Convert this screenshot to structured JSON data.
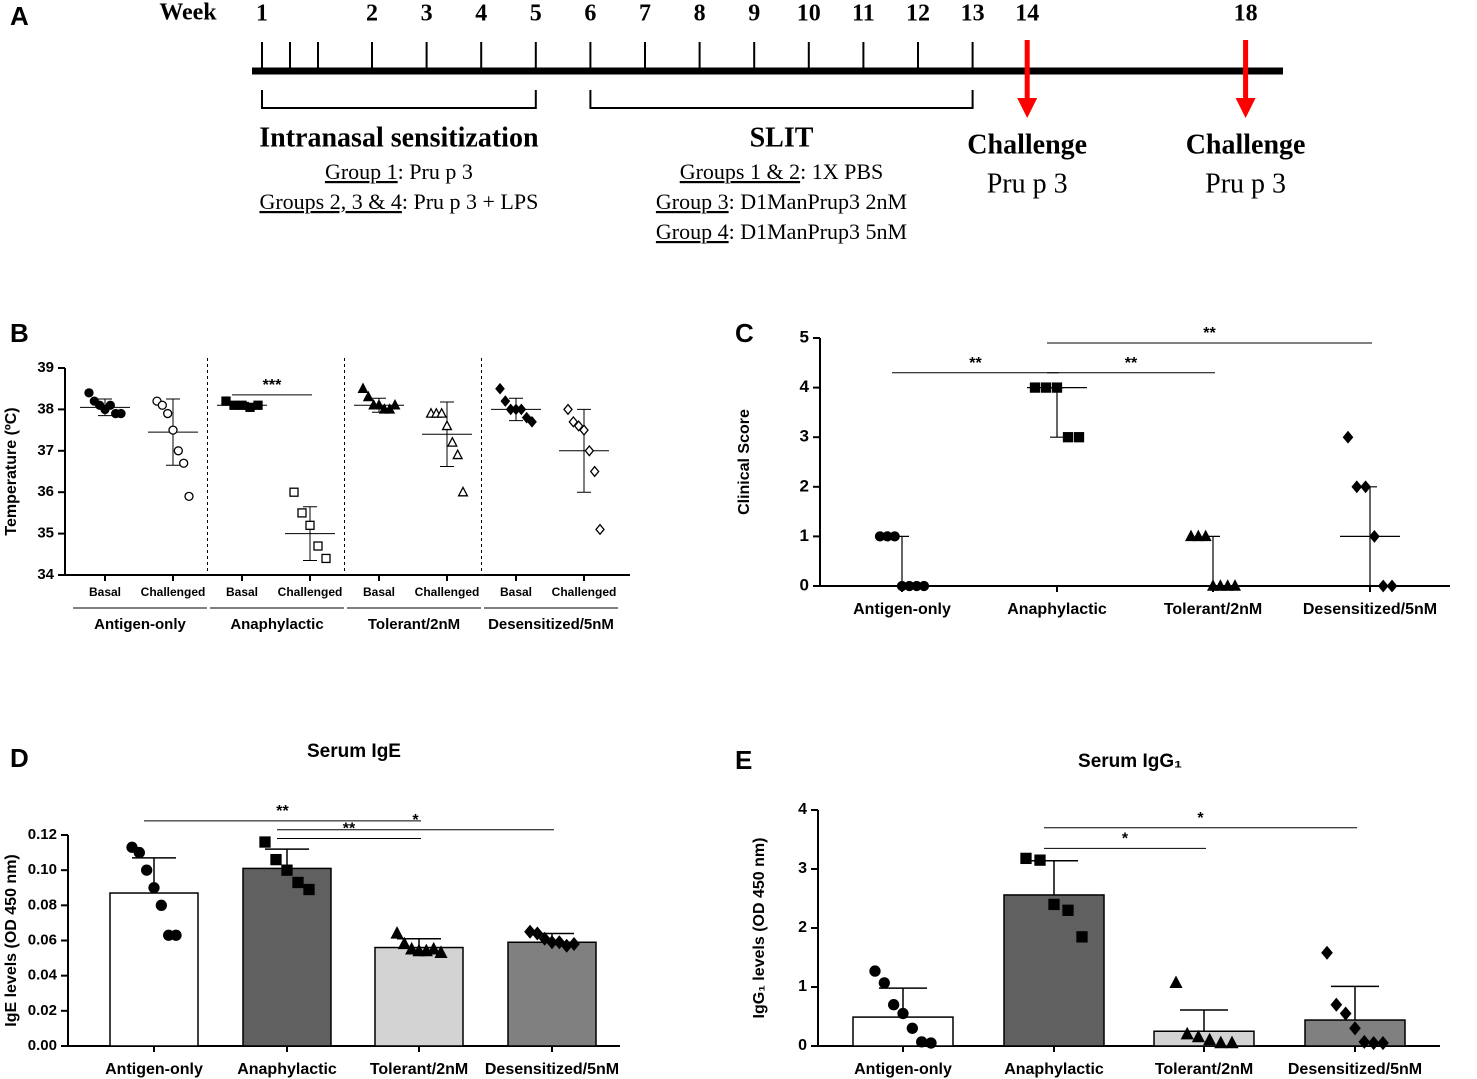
{
  "timeline": {
    "panel": "A",
    "axis_label": "Week",
    "weeks": [
      1,
      2,
      3,
      4,
      5,
      6,
      7,
      8,
      9,
      10,
      11,
      12,
      13
    ],
    "phases": [
      {
        "title": "Intranasal sensitization",
        "weeks": [
          1,
          5
        ],
        "lines": [
          {
            "group": "Group 1",
            "text": ": Pru p 3"
          },
          {
            "group": "Groups 2, 3 & 4",
            "text": ": Pru p 3 + LPS"
          }
        ]
      },
      {
        "title": "SLIT",
        "weeks": [
          6,
          13
        ],
        "lines": [
          {
            "group": "Groups 1 & 2",
            "text": ": 1X PBS"
          },
          {
            "group": "Group 3",
            "text": ": D1ManPrup3 2nM"
          },
          {
            "group": "Group 4",
            "text": ": D1ManPrup3 5nM"
          }
        ]
      }
    ],
    "challenges": [
      {
        "week": 14,
        "label": "Challenge",
        "antigen": "Pru p 3",
        "color": "#ff0000"
      },
      {
        "week": 18,
        "label": "Challenge",
        "antigen": "Pru p 3",
        "color": "#ff0000"
      }
    ]
  },
  "chart_data": [
    {
      "panel": "B",
      "type": "dot",
      "y_label": "Temperature (ºC)",
      "categories": [
        "Basal",
        "Challenged",
        "Basal",
        "Challenged",
        "Basal",
        "Challenged",
        "Basal",
        "Challenged"
      ],
      "groups": [
        "Antigen-only",
        "Anaphylactic",
        "Tolerant/2nM",
        "Desensitized/5nM"
      ],
      "markers": [
        "circle",
        "square",
        "triangle",
        "diamond"
      ],
      "points": [
        [
          38.4,
          38.2,
          38.1,
          38.0,
          38.1,
          37.9,
          37.9
        ],
        [
          38.2,
          38.1,
          37.9,
          37.5,
          37.0,
          36.7,
          35.9
        ],
        [
          38.2,
          38.1,
          38.1,
          38.05,
          38.1
        ],
        [
          36.0,
          35.5,
          35.2,
          34.7,
          34.4
        ],
        [
          38.5,
          38.3,
          38.1,
          38.1,
          38.0,
          38.0,
          38.1
        ],
        [
          37.9,
          37.9,
          37.9,
          37.6,
          37.2,
          36.9,
          36.0
        ],
        [
          38.5,
          38.2,
          38.0,
          38.0,
          38.0,
          37.8,
          37.7
        ],
        [
          38.0,
          37.7,
          37.6,
          37.5,
          37.0,
          36.5,
          35.1
        ]
      ],
      "means": [
        38.05,
        37.45,
        38.1,
        35.0,
        38.1,
        37.4,
        38.0,
        37.0
      ],
      "sd": [
        0.2,
        0.8,
        0.07,
        0.65,
        0.17,
        0.78,
        0.27,
        1.0
      ],
      "ylim": [
        34,
        39
      ],
      "yticks": [
        34,
        35,
        36,
        37,
        38,
        39
      ],
      "annotations": [
        {
          "text": "***",
          "from": 2,
          "to": 3,
          "y": 38.35
        }
      ]
    },
    {
      "panel": "C",
      "type": "dot",
      "y_label": "Clinical Score",
      "categories": [
        "Antigen-only",
        "Anaphylactic",
        "Tolerant/2nM",
        "Desensitized/5nM"
      ],
      "markers": [
        "circle",
        "square",
        "triangle",
        "diamond"
      ],
      "points": [
        [
          1,
          1,
          1,
          0,
          0,
          0,
          0
        ],
        [
          4,
          4,
          4,
          3,
          3
        ],
        [
          1,
          1,
          1,
          0,
          0,
          0,
          0
        ],
        [
          3,
          2,
          2,
          1,
          0,
          0
        ]
      ],
      "medians": [
        0,
        4,
        0,
        1
      ],
      "low": [
        0,
        3,
        0,
        0
      ],
      "high": [
        1,
        4,
        1,
        2
      ],
      "ylim": [
        0,
        5
      ],
      "yticks": [
        0,
        1,
        2,
        3,
        4,
        5
      ],
      "annotations": [
        {
          "text": "**",
          "from": 0,
          "to": 1,
          "y": 4.3
        },
        {
          "text": "**",
          "from": 1,
          "to": 2,
          "y": 4.3
        },
        {
          "text": "**",
          "from": 1,
          "to": 3,
          "y": 4.9
        }
      ]
    },
    {
      "panel": "D",
      "type": "bar",
      "title": "Serum IgE",
      "y_label": "IgE levels (OD 450 nm)",
      "categories": [
        "Antigen-only",
        "Anaphylactic",
        "Tolerant/2nM",
        "Desensitized/5nM"
      ],
      "markers": [
        "circle",
        "square",
        "triangle",
        "diamond"
      ],
      "colors": [
        "#ffffff",
        "#606060",
        "#d3d3d3",
        "#808080"
      ],
      "means": [
        0.087,
        0.101,
        0.056,
        0.059
      ],
      "sd": [
        0.02,
        0.011,
        0.005,
        0.005
      ],
      "points": [
        [
          0.113,
          0.11,
          0.1,
          0.09,
          0.08,
          0.063,
          0.063
        ],
        [
          0.116,
          0.106,
          0.1,
          0.093,
          0.089
        ],
        [
          0.064,
          0.058,
          0.055,
          0.054,
          0.054,
          0.055,
          0.053
        ],
        [
          0.065,
          0.064,
          0.061,
          0.059,
          0.059,
          0.057,
          0.058
        ]
      ],
      "ylim": [
        0,
        0.12
      ],
      "yticks": [
        {
          "value": 0,
          "label": "0.00"
        },
        0.02,
        0.04,
        0.06,
        0.08,
        {
          "value": 0.1,
          "label": "0.10"
        },
        {
          "value": 0.12,
          "label": "0.12"
        }
      ],
      "annotations": [
        {
          "text": "**",
          "from": 0,
          "to": 2,
          "y": 0.128
        },
        {
          "text": "*",
          "from": 1,
          "to": 3,
          "y": 0.123
        },
        {
          "text": "**",
          "from": 1,
          "to": 2,
          "y": 0.118
        }
      ]
    },
    {
      "panel": "E",
      "type": "bar",
      "title": "Serum IgG₁",
      "y_label": "IgG₁ levels (OD 450 nm)",
      "categories": [
        "Antigen-only",
        "Anaphylactic",
        "Tolerant/2nM",
        "Desensitized/5nM"
      ],
      "markers": [
        "circle",
        "square",
        "triangle",
        "diamond"
      ],
      "colors": [
        "#ffffff",
        "#606060",
        "#d3d3d3",
        "#808080"
      ],
      "means": [
        0.49,
        2.56,
        0.25,
        0.44
      ],
      "sd": [
        0.49,
        0.58,
        0.36,
        0.57
      ],
      "points": [
        [
          1.27,
          1.07,
          0.7,
          0.55,
          0.3,
          0.07,
          0.05
        ],
        [
          3.18,
          3.15,
          2.4,
          2.3,
          1.85
        ],
        [
          1.07,
          0.2,
          0.15,
          0.1,
          0.05,
          0.05
        ],
        [
          1.58,
          0.7,
          0.55,
          0.3,
          0.07,
          0.05,
          0.05
        ]
      ],
      "ylim": [
        0,
        4
      ],
      "yticks": [
        0,
        1,
        2,
        3,
        4
      ],
      "annotations": [
        {
          "text": "*",
          "from": 1,
          "to": 2,
          "y": 3.35
        },
        {
          "text": "*",
          "from": 1,
          "to": 3,
          "y": 3.7
        }
      ]
    }
  ]
}
